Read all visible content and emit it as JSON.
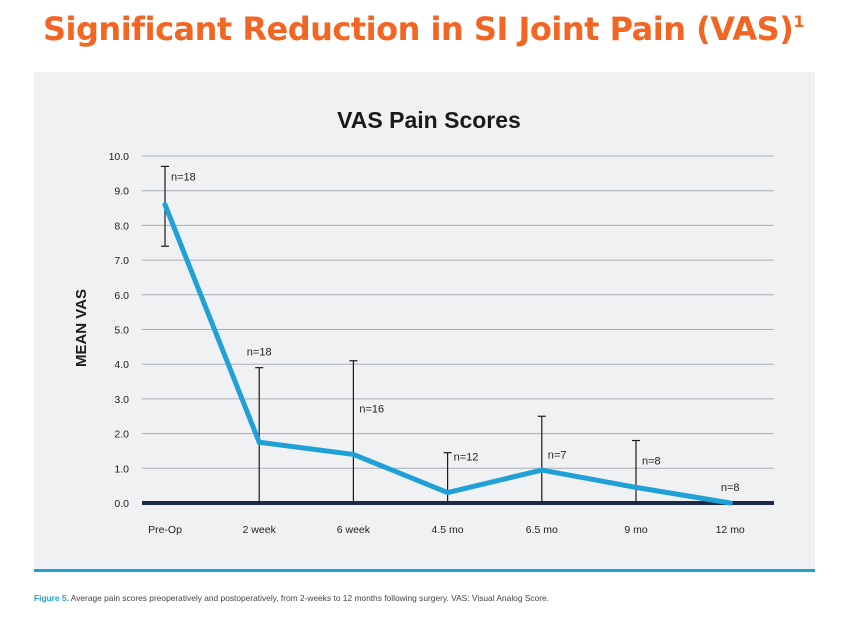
{
  "headline": {
    "text": "Significant Reduction in SI Joint Pain (VAS)",
    "superscript": "1"
  },
  "caption": {
    "label": "Figure 5.",
    "text": "Average pain scores preoperatively and postoperatively, from 2-weeks to 12 months following surgery. VAS: Visual Analog Score."
  },
  "colors": {
    "headline": "#f26522",
    "series_line": "#1fa1d8",
    "baseline": "#1c2a4a",
    "panel_background": "#f0f1f2",
    "grid": "#a9adb2"
  },
  "chart_data": {
    "type": "line",
    "title": "VAS Pain Scores",
    "xlabel": "",
    "ylabel": "MEAN VAS",
    "ylim": [
      0,
      10
    ],
    "yticks": [
      "0.0",
      "1.0",
      "2.0",
      "3.0",
      "4.0",
      "5.0",
      "6.0",
      "7.0",
      "8.0",
      "9.0",
      "10.0"
    ],
    "categories": [
      "Pre-Op",
      "2 week",
      "6 week",
      "4.5 mo",
      "6.5 mo",
      "9 mo",
      "12 mo"
    ],
    "series": [
      {
        "values": [
          8.6,
          1.75,
          1.4,
          0.3,
          0.95,
          0.45,
          0.0
        ],
        "error_upper": [
          9.7,
          3.9,
          4.1,
          1.45,
          2.5,
          1.8,
          0.0
        ],
        "error_lower": [
          7.4,
          0.0,
          0.0,
          0.0,
          0.0,
          0.0,
          0.0
        ]
      }
    ],
    "n_labels": [
      "n=18",
      "n=18",
      "n=16",
      "n=12",
      "n=7",
      "n=8",
      "n=8"
    ],
    "grid": true,
    "legend": "none"
  }
}
